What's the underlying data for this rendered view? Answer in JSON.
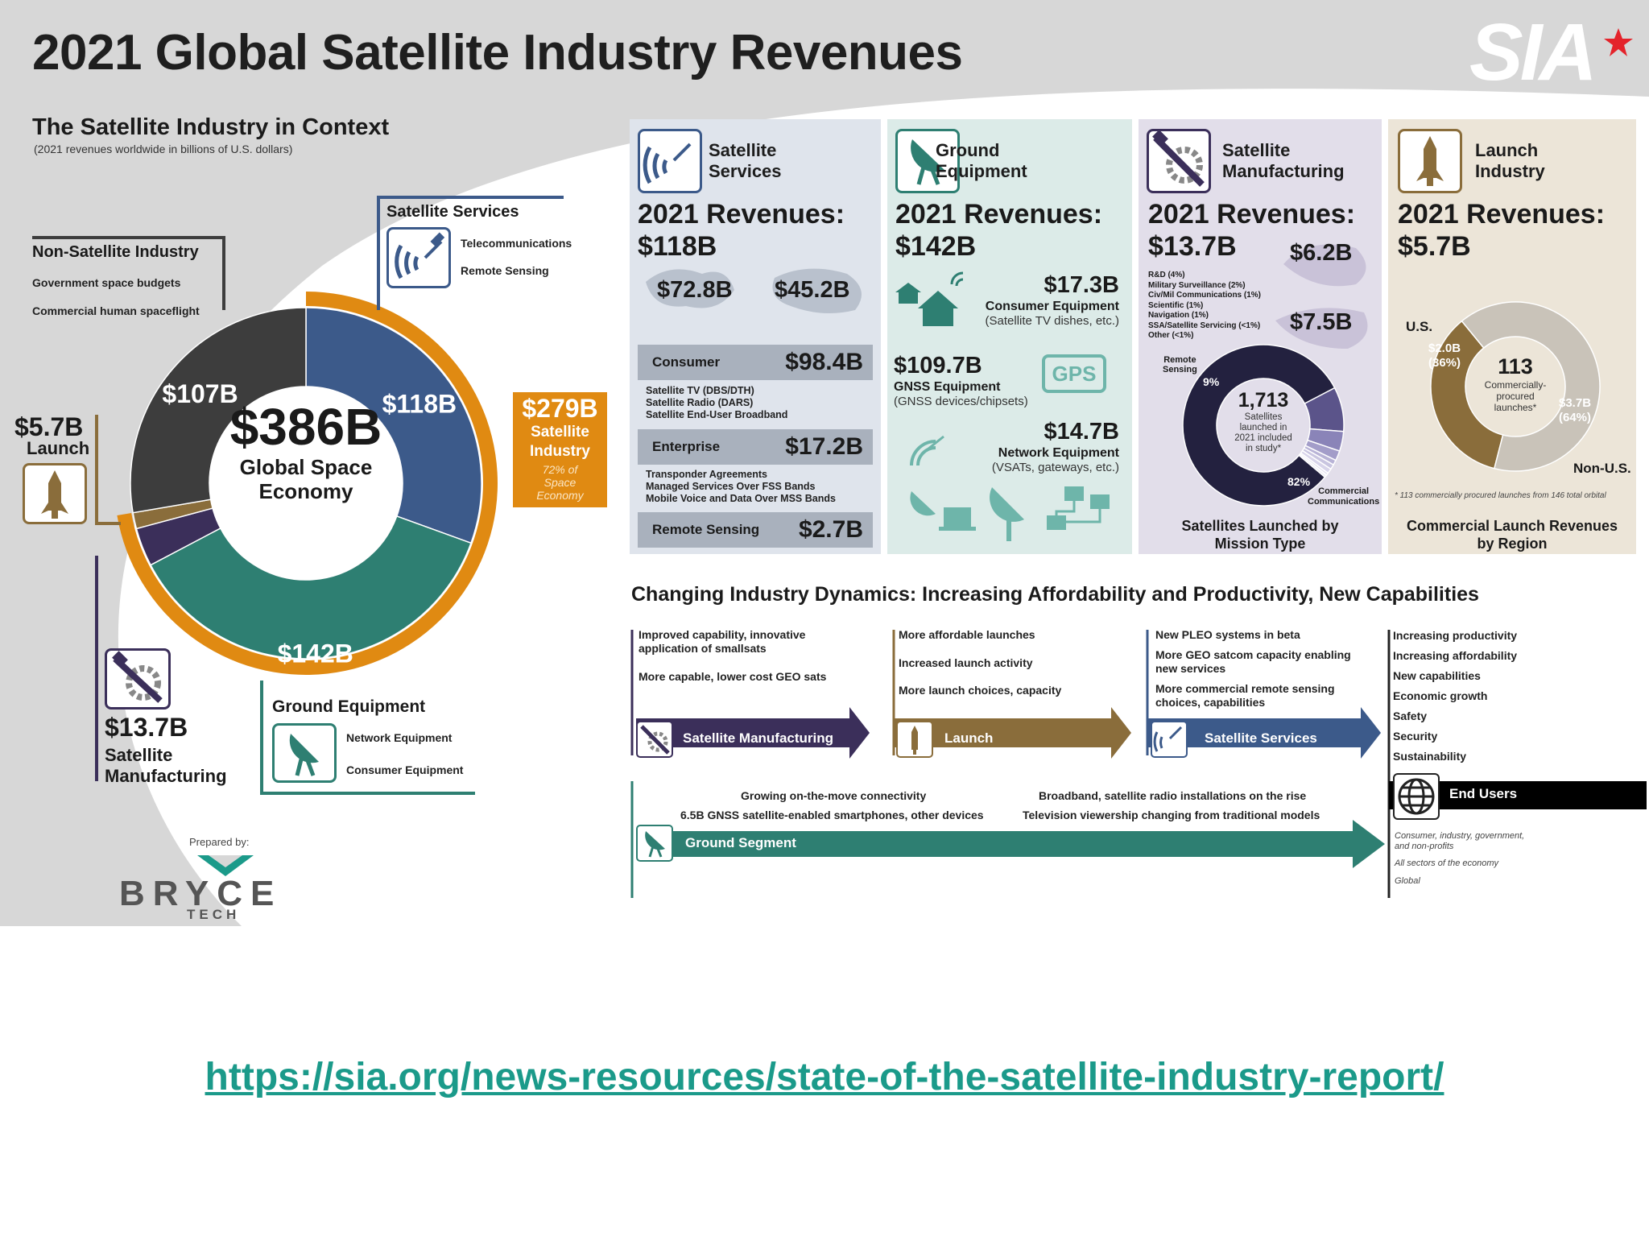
{
  "title": "2021 Global Satellite Industry Revenues",
  "logo": {
    "text": "SIA",
    "star_color": "#e4232b"
  },
  "context": {
    "title": "The Satellite Industry in Context",
    "subtitle": "(2021 revenues worldwide in billions of U.S. dollars)",
    "non_satellite": {
      "label": "Non-Satellite Industry",
      "items": [
        "Government space budgets",
        "Commercial human spaceflight"
      ]
    },
    "sat_services": {
      "label": "Satellite Services",
      "items": [
        "Telecommunications",
        "Remote Sensing"
      ]
    },
    "launch": {
      "value": "$5.7B",
      "label": "Launch"
    },
    "manufacturing": {
      "value": "$13.7B",
      "label_line1": "Satellite",
      "label_line2": "Manufacturing"
    },
    "ground": {
      "label": "Ground Equipment",
      "items": [
        "Network Equipment",
        "Consumer Equipment"
      ]
    },
    "satellite_industry": {
      "value": "$279B",
      "line1": "Satellite",
      "line2": "Industry",
      "note1": "72% of",
      "note2": "Space",
      "note3": "Economy"
    },
    "center": {
      "value": "$386B",
      "line1": "Global Space",
      "line2": "Economy"
    },
    "prepared_by": "Prepared by:",
    "bryce": {
      "name": "BRYCE",
      "sub": "TECH"
    }
  },
  "panels": {
    "services": {
      "title1": "Satellite",
      "title2": "Services",
      "rev1": "2021 Revenues:",
      "rev2": "$118B",
      "us": "$72.8B",
      "nonus": "$45.2B",
      "consumer": {
        "name": "Consumer",
        "value": "$98.4B",
        "items": [
          "Satellite TV (DBS/DTH)",
          "Satellite Radio (DARS)",
          "Satellite End-User Broadband"
        ]
      },
      "enterprise": {
        "name": "Enterprise",
        "value": "$17.2B",
        "items": [
          "Transponder Agreements",
          "Managed Services Over FSS Bands",
          "Mobile Voice and Data Over MSS Bands"
        ]
      },
      "remote": {
        "name": "Remote Sensing",
        "value": "$2.7B"
      }
    },
    "ground": {
      "title1": "Ground",
      "title2": "Equipment",
      "rev1": "2021 Revenues:",
      "rev2": "$142B",
      "consumer": {
        "value": "$17.3B",
        "name": "Consumer Equipment",
        "desc": "(Satellite TV dishes, etc.)"
      },
      "gnss": {
        "value": "$109.7B",
        "name": "GNSS Equipment",
        "desc": "(GNSS devices/chipsets)",
        "badge": "GPS"
      },
      "network": {
        "value": "$14.7B",
        "name": "Network Equipment",
        "desc": "(VSATs, gateways, etc.)"
      }
    },
    "manufacturing": {
      "title1": "Satellite",
      "title2": "Manufacturing",
      "rev1": "2021 Revenues:",
      "rev2": "$13.7B",
      "us": "$6.2B",
      "nonus": "$7.5B",
      "list": [
        "R&D (4%)",
        "Military Surveillance (2%)",
        "Civ/Mil Communications (1%)",
        "Scientific (1%)",
        "Navigation (1%)",
        "SSA/Satellite Servicing (<1%)",
        "Other (<1%)"
      ],
      "remote_label1": "Remote",
      "remote_label2": "Sensing",
      "pct_remote": "9%",
      "pct_comm": "82%",
      "comm_label1": "Commercial",
      "comm_label2": "Communications",
      "donut_value": "1,713",
      "donut_note": [
        "Satellites",
        "launched in",
        "2021 included",
        "in study*"
      ],
      "caption1": "Satellites Launched by",
      "caption2": "Mission Type"
    },
    "launch": {
      "title1": "Launch",
      "title2": "Industry",
      "rev1": "2021 Revenues:",
      "rev2": "$5.7B",
      "us_label": "U.S.",
      "nonus_label": "Non-U.S.",
      "us_value": "$2.0B",
      "us_pct": "(36%)",
      "nonus_value": "$3.7B",
      "nonus_pct": "(64%)",
      "donut_value": "113",
      "donut_note": [
        "Commercially-",
        "procured",
        "launches*"
      ],
      "footnote": "* 113 commercially procured launches from 146 total orbital",
      "caption1": "Commercial Launch Revenues",
      "caption2": "by Region"
    }
  },
  "dynamics": {
    "title": "Changing Industry Dynamics: Increasing Affordability and Productivity, New Capabilities",
    "col1": [
      "Improved capability, innovative",
      "application of smallsats",
      "More capable, lower cost GEO sats"
    ],
    "col2": [
      "More affordable launches",
      "Increased launch activity",
      "More launch choices, capacity"
    ],
    "col3": [
      "New PLEO systems in beta",
      "More GEO satcom capacity enabling",
      "new services",
      "More commercial remote sensing",
      "choices, capabilities"
    ],
    "col4": [
      "Increasing productivity",
      "Increasing affordability",
      "New capabilities",
      "Economic growth",
      "Safety",
      "Security",
      "Sustainability"
    ],
    "arrows": {
      "manufacturing": "Satellite Manufacturing",
      "launch": "Launch",
      "services": "Satellite Services",
      "ground": "Ground Segment",
      "end_users": "End Users"
    },
    "ground_notes": [
      "Growing on-the-move connectivity",
      "6.5B GNSS satellite-enabled smartphones, other devices",
      "Broadband, satellite radio installations on the rise",
      "Television viewership changing from traditional models"
    ],
    "end_user_notes": [
      "Consumer, industry, government,",
      "and non-profits",
      "All sectors of the economy",
      "Global"
    ]
  },
  "url": "https://sia.org/news-resources/state-of-the-satellite-industry-report/",
  "colors": {
    "services": "#3c5a8a",
    "ground": "#2e7f72",
    "manufacturing": "#3b2f5a",
    "launch": "#8a6d3b",
    "non_satellite": "#3d3d3d",
    "satellite_ring": "#e08a12",
    "dark_navy": "#23213f"
  },
  "chart_data": [
    {
      "type": "pie",
      "title": "",
      "categories": [
        "Satellite Services",
        "Ground Equipment",
        "Satellite Manufacturing",
        "Launch",
        "Non-Satellite Industry"
      ],
      "values": [
        118,
        142,
        13.7,
        5.7,
        107
      ],
      "labels": [
        "$118B",
        "$142B",
        "$13.7B",
        "$5.7B",
        "$107B"
      ],
      "total": 386,
      "center_label": "$386B Global Space Economy",
      "units": "billions of U.S. dollars"
    },
    {
      "type": "pie",
      "title": "Satellites Launched by Mission Type",
      "categories": [
        "Commercial Communications",
        "Remote Sensing",
        "R&D",
        "Military Surveillance",
        "Civ/Mil Communications",
        "Scientific",
        "Navigation",
        "SSA/Satellite Servicing",
        "Other"
      ],
      "values": [
        82,
        9,
        4,
        2,
        1,
        1,
        1,
        0.5,
        0.5
      ],
      "total": 1713
    },
    {
      "type": "pie",
      "title": "Commercial Launch Revenues by Region",
      "categories": [
        "U.S.",
        "Non-U.S."
      ],
      "values": [
        2.0,
        3.7
      ],
      "percent": [
        36,
        64
      ],
      "total": 113
    }
  ]
}
